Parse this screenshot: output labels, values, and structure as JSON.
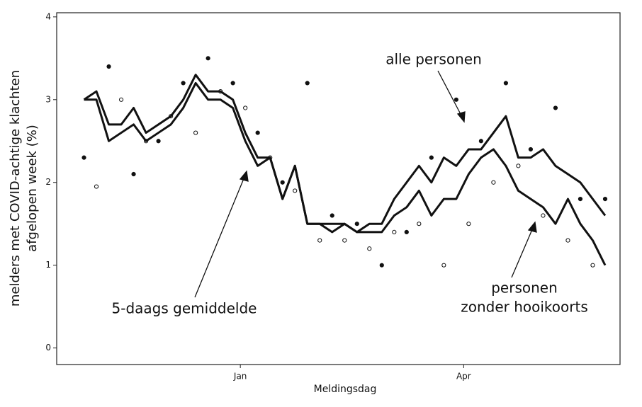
{
  "chart_data": {
    "type": "line",
    "y_label": [
      "melders met COVID-achtige klachten",
      "afgelopen week (%)"
    ],
    "x_label": "Meldingsdag",
    "annotations": [
      "alle personen",
      "5-daags gemiddelde",
      "personen",
      "zonder hooikoorts"
    ],
    "xlim": [
      -74,
      153
    ],
    "xticks": [
      {
        "value": 0,
        "label": "Jan"
      },
      {
        "value": 90,
        "label": "Apr"
      }
    ],
    "ylim": [
      -0.2,
      4.05
    ],
    "yticks": [
      0,
      1,
      2,
      3,
      4
    ],
    "x": [
      -63,
      -58,
      -53,
      -48,
      -43,
      -38,
      -33,
      -28,
      -23,
      -18,
      -13,
      -8,
      -3,
      2,
      7,
      12,
      17,
      22,
      27,
      32,
      37,
      42,
      47,
      52,
      57,
      62,
      67,
      72,
      77,
      82,
      87,
      92,
      97,
      102,
      107,
      112,
      117,
      122,
      127,
      132,
      137,
      142,
      147
    ],
    "series": [
      {
        "color": "#111111",
        "values": [
          3.0,
          3.1,
          2.7,
          2.7,
          2.9,
          2.6,
          2.7,
          2.8,
          3.0,
          3.3,
          3.1,
          3.1,
          3.0,
          2.6,
          2.3,
          2.3,
          1.8,
          2.2,
          1.5,
          1.5,
          1.5,
          1.5,
          1.4,
          1.5,
          1.5,
          1.8,
          2.0,
          2.2,
          2.0,
          2.3,
          2.2,
          2.4,
          2.4,
          2.6,
          2.8,
          2.3,
          2.3,
          2.4,
          2.2,
          2.1,
          2.0,
          1.8,
          1.6
        ]
      },
      {
        "color": "#111111",
        "values": [
          3.0,
          3.0,
          2.5,
          2.6,
          2.7,
          2.5,
          2.6,
          2.7,
          2.9,
          3.2,
          3.0,
          3.0,
          2.9,
          2.5,
          2.2,
          2.3,
          1.8,
          2.2,
          1.5,
          1.5,
          1.4,
          1.5,
          1.4,
          1.4,
          1.4,
          1.6,
          1.7,
          1.9,
          1.6,
          1.8,
          1.8,
          2.1,
          2.3,
          2.4,
          2.2,
          1.9,
          1.8,
          1.7,
          1.5,
          1.8,
          1.5,
          1.3,
          1.0
        ]
      }
    ],
    "dots": [
      {
        "fill": "#111111",
        "x": [
          -63,
          -53,
          -43,
          -33,
          -23,
          -13,
          -3,
          7,
          17,
          27,
          37,
          47,
          57,
          67,
          77,
          87,
          97,
          107,
          117,
          127,
          137,
          147
        ],
        "values": [
          2.3,
          3.4,
          2.1,
          2.5,
          3.2,
          3.5,
          3.2,
          2.6,
          2.0,
          3.2,
          1.6,
          1.5,
          1.0,
          1.4,
          2.3,
          3.0,
          2.5,
          3.2,
          2.4,
          2.9,
          1.8,
          1.8
        ]
      },
      {
        "fill": "#ffffff",
        "x": [
          -58,
          -48,
          -38,
          -28,
          -18,
          -8,
          2,
          12,
          22,
          32,
          42,
          52,
          62,
          72,
          82,
          92,
          102,
          112,
          122,
          132,
          142
        ],
        "values": [
          1.95,
          3.0,
          2.5,
          2.8,
          2.6,
          3.1,
          2.9,
          2.3,
          1.9,
          1.3,
          1.3,
          1.2,
          1.4,
          1.5,
          1.0,
          1.5,
          2.0,
          2.2,
          1.6,
          1.3,
          1.0
        ]
      }
    ]
  }
}
